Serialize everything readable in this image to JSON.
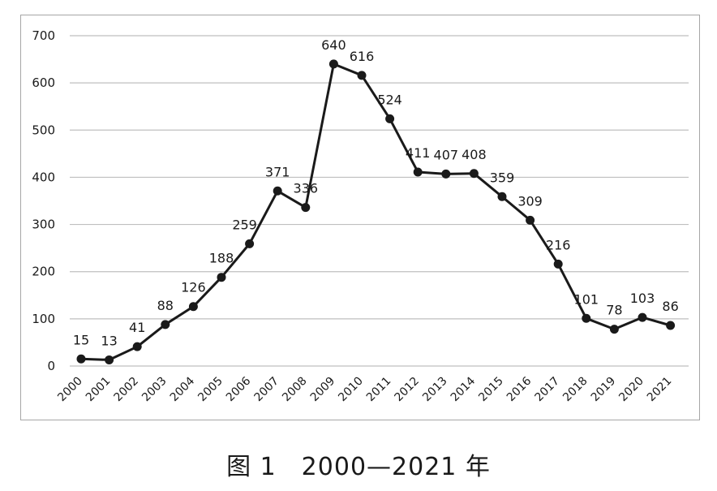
{
  "chart_data": {
    "type": "line",
    "title": "",
    "xlabel": "",
    "ylabel": "",
    "ylim": [
      0,
      700
    ],
    "yticks": [
      0,
      100,
      200,
      300,
      400,
      500,
      600,
      700
    ],
    "grid": true,
    "legend": "none",
    "line_color": "#1a1a1a",
    "grid_color": "#bfbfbf",
    "categories": [
      "2000",
      "2001",
      "2002",
      "2003",
      "2004",
      "2005",
      "2006",
      "2007",
      "2008",
      "2009",
      "2010",
      "2011",
      "2012",
      "2013",
      "2014",
      "2015",
      "2016",
      "2017",
      "2018",
      "2019",
      "2020",
      "2021"
    ],
    "series": [
      {
        "values": [
          15,
          13,
          41,
          88,
          126,
          188,
          259,
          371,
          336,
          640,
          616,
          524,
          411,
          407,
          408,
          359,
          309,
          216,
          101,
          78,
          103,
          86
        ]
      }
    ]
  },
  "caption": "图 1　2000—2021 年"
}
